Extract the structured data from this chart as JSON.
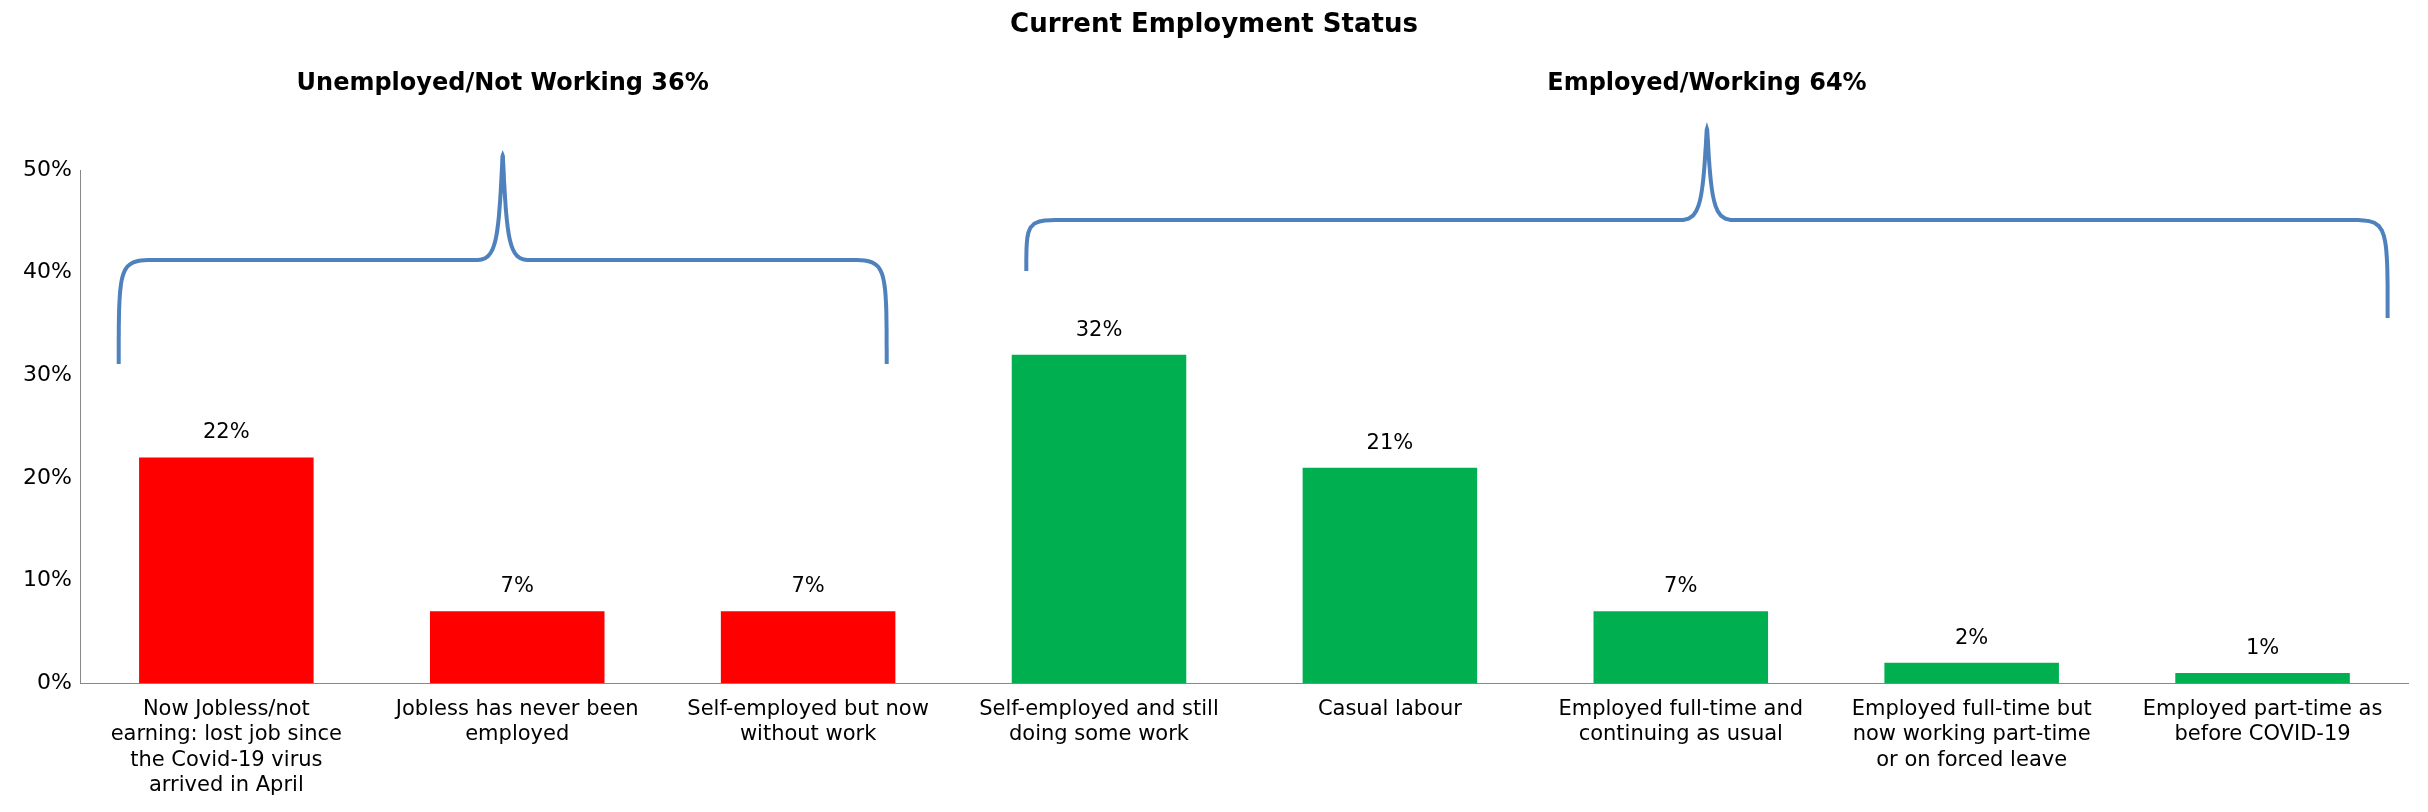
{
  "chart_data": {
    "type": "bar",
    "title": "Current Employment Status",
    "categories": [
      "Now Jobless/not earning: lost job since the Covid-19 virus arrived in April",
      "Jobless has never been employed",
      "Self-employed but now without work",
      "Self-employed and still doing some work",
      "Casual labour",
      "Employed full-time and continuing as usual",
      "Employed full-time but now working part-time or on forced leave",
      "Employed part-time as before COVID-19"
    ],
    "values": [
      22,
      7,
      7,
      32,
      21,
      7,
      2,
      1
    ],
    "colors": [
      "#ff0000",
      "#ff0000",
      "#ff0000",
      "#00b050",
      "#00b050",
      "#00b050",
      "#00b050",
      "#00b050"
    ],
    "value_labels": [
      "22%",
      "7%",
      "7%",
      "32%",
      "21%",
      "7%",
      "2%",
      "1%"
    ],
    "ylim": [
      0,
      50
    ],
    "yticks": [
      {
        "value": 0,
        "label": "0%"
      },
      {
        "value": 10,
        "label": "10%"
      },
      {
        "value": 20,
        "label": "20%"
      },
      {
        "value": 30,
        "label": "30%"
      },
      {
        "value": 40,
        "label": "40%"
      },
      {
        "value": 50,
        "label": "50%"
      }
    ],
    "annotations": [
      "Unemployed/Not Working 36%",
      "Employed/Working 64%"
    ],
    "grid": false,
    "legend": false
  }
}
